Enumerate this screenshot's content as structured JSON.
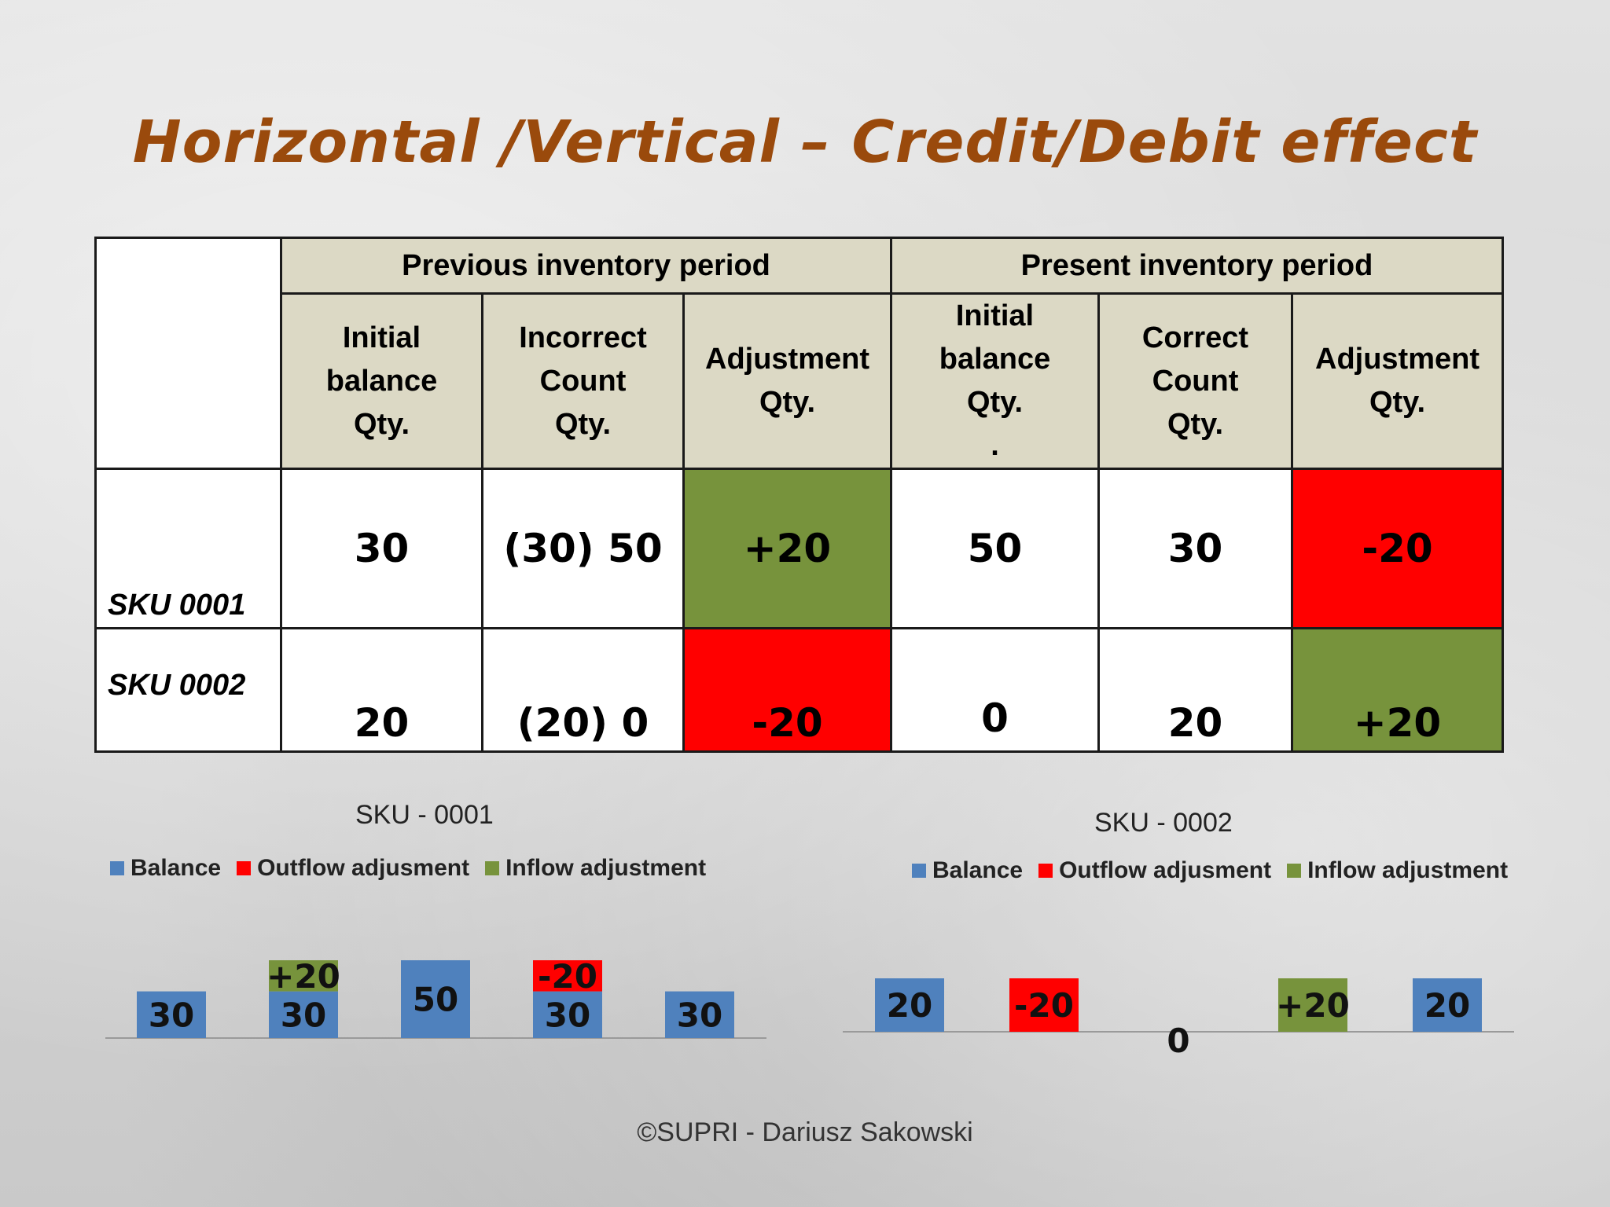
{
  "title": "Horizontal /Vertical – Credit/Debit effect",
  "table": {
    "previous_header": "Previous inventory period",
    "present_header": "Present inventory period",
    "columns": [
      "Initial\nbalance\nQty.",
      "Incorrect\nCount\nQty.",
      "Adjustment\nQty.",
      "Initial\nbalance\nQty.\n.",
      "Correct\nCount\nQty.",
      "Adjustment\nQty."
    ],
    "rows": [
      {
        "label": "SKU 0001",
        "cells": [
          "30",
          "(30) 50",
          "+20",
          "50",
          "30",
          "-20"
        ]
      },
      {
        "label": "SKU 0002",
        "cells": [
          "20",
          "(20) 0",
          "-20",
          "0",
          "20",
          "+20"
        ]
      }
    ]
  },
  "colors": {
    "balance": "#4f81bd",
    "outflow": "#ff0000",
    "inflow": "#77933c",
    "title": "#9a4a0c"
  },
  "legend": [
    "Balance",
    "Outflow adjusment",
    "Inflow adjustment"
  ],
  "chart_data": [
    {
      "type": "bar",
      "title": "SKU - 0001",
      "stacked": true,
      "categories": [
        "",
        "",
        "",
        "",
        ""
      ],
      "series": [
        {
          "name": "Balance",
          "values": [
            30,
            30,
            50,
            30,
            30
          ]
        },
        {
          "name": "Outflow adjusment",
          "values": [
            0,
            0,
            0,
            20,
            0
          ]
        },
        {
          "name": "Inflow adjustment",
          "values": [
            0,
            20,
            0,
            0,
            0
          ]
        }
      ],
      "data_labels": {
        "Balance": [
          "30",
          "30",
          "50",
          "30",
          "30"
        ],
        "Outflow adjusment": [
          "",
          "",
          "",
          "-20",
          ""
        ],
        "Inflow adjustment": [
          "",
          "+20",
          "",
          "",
          ""
        ]
      },
      "legend_position": "top",
      "grid": false
    },
    {
      "type": "bar",
      "title": "SKU -  0002",
      "stacked": true,
      "categories": [
        "",
        "",
        "",
        "",
        ""
      ],
      "series": [
        {
          "name": "Balance",
          "values": [
            20,
            0,
            0,
            0,
            20
          ]
        },
        {
          "name": "Outflow adjusment",
          "values": [
            0,
            20,
            0,
            0,
            0
          ]
        },
        {
          "name": "Inflow adjustment",
          "values": [
            0,
            0,
            0,
            20,
            0
          ]
        }
      ],
      "data_labels": {
        "Balance": [
          "20",
          "",
          "0",
          "",
          "20"
        ],
        "Outflow adjusment": [
          "",
          "-20",
          "",
          "",
          ""
        ],
        "Inflow adjustment": [
          "",
          "",
          "",
          "+20",
          ""
        ]
      },
      "legend_position": "top",
      "grid": false
    }
  ],
  "footer": "©SUPRI - Dariusz Sakowski"
}
